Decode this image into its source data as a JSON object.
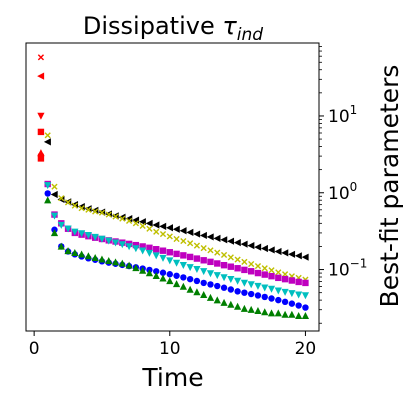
{
  "chart_data": {
    "type": "scatter",
    "title_main": "Dissipative ",
    "title_symbol": "τ",
    "title_subscript": "ind",
    "xlabel": "Time",
    "ylabel": "Best-fit parameters",
    "xlim": [
      -0.6,
      21.0
    ],
    "ylim_log10": [
      -1.8,
      1.95
    ],
    "yscale": "log",
    "yaxis_side": "right",
    "grid": false,
    "x_ticks": [
      0,
      10,
      20
    ],
    "x_tick_labels": [
      "0",
      "10",
      "20"
    ],
    "y_ticks": [
      0.1,
      1,
      10
    ],
    "y_tick_labels": [
      {
        "base": "10",
        "exp": "−1"
      },
      {
        "base": "10",
        "exp": "0"
      },
      {
        "base": "10",
        "exp": "1"
      }
    ],
    "x": [
      0.5,
      1,
      1.5,
      2,
      2.5,
      3,
      3.5,
      4,
      4.5,
      5,
      5.5,
      6,
      6.5,
      7,
      7.5,
      8,
      8.5,
      9,
      9.5,
      10,
      10.5,
      11,
      11.5,
      12,
      12.5,
      13,
      13.5,
      14,
      14.5,
      15,
      15.5,
      16,
      16.5,
      17,
      17.5,
      18,
      18.5,
      19,
      19.5,
      20
    ],
    "series": [
      {
        "color": "#000000",
        "marker": "triangle-left",
        "x_start_index": 1,
        "values": [
          4.6,
          0.95,
          0.82,
          0.76,
          0.7,
          0.66,
          0.62,
          0.59,
          0.56,
          0.53,
          0.5,
          0.48,
          0.46,
          0.44,
          0.42,
          0.4,
          0.38,
          0.365,
          0.35,
          0.335,
          0.32,
          0.305,
          0.29,
          0.278,
          0.266,
          0.255,
          0.244,
          0.234,
          0.224,
          0.214,
          0.205,
          0.196,
          0.188,
          0.18,
          0.172,
          0.165,
          0.158,
          0.151,
          0.145
        ]
      },
      {
        "color": "#bfbf00",
        "marker": "x",
        "x_start_index": 1,
        "values": [
          5.6,
          1.2,
          0.85,
          0.75,
          0.68,
          0.63,
          0.6,
          0.57,
          0.55,
          0.52,
          0.49,
          0.46,
          0.43,
          0.4,
          0.37,
          0.34,
          0.31,
          0.29,
          0.27,
          0.25,
          0.235,
          0.22,
          0.205,
          0.19,
          0.178,
          0.166,
          0.155,
          0.144,
          0.135,
          0.126,
          0.118,
          0.111,
          0.104,
          0.098,
          0.092,
          0.087,
          0.082,
          0.078,
          0.074
        ]
      },
      {
        "color": "#bf00bf",
        "marker": "square",
        "x_start_index": 1,
        "values": [
          1.3,
          0.52,
          0.4,
          0.34,
          0.3,
          0.285,
          0.272,
          0.26,
          0.25,
          0.24,
          0.232,
          0.224,
          0.216,
          0.208,
          0.2,
          0.192,
          0.184,
          0.176,
          0.168,
          0.16,
          0.153,
          0.146,
          0.139,
          0.132,
          0.126,
          0.12,
          0.114,
          0.109,
          0.104,
          0.099,
          0.095,
          0.09,
          0.086,
          0.082,
          0.078,
          0.075,
          0.072,
          0.069,
          0.067
        ]
      },
      {
        "color": "#00bfbf",
        "marker": "triangle-down",
        "x_start_index": 1,
        "values": [
          1.25,
          0.5,
          0.38,
          0.34,
          0.31,
          0.295,
          0.28,
          0.265,
          0.25,
          0.237,
          0.224,
          0.212,
          0.2,
          0.188,
          0.176,
          0.164,
          0.152,
          0.141,
          0.131,
          0.122,
          0.114,
          0.107,
          0.101,
          0.095,
          0.089,
          0.084,
          0.079,
          0.075,
          0.071,
          0.067,
          0.064,
          0.061,
          0.058,
          0.056,
          0.053,
          0.051,
          0.049,
          0.047,
          0.046
        ]
      },
      {
        "color": "#0000ff",
        "marker": "circle",
        "x_start_index": 1,
        "values": [
          0.98,
          0.33,
          0.2,
          0.172,
          0.158,
          0.148,
          0.14,
          0.134,
          0.128,
          0.123,
          0.119,
          0.115,
          0.111,
          0.107,
          0.103,
          0.099,
          0.095,
          0.091,
          0.087,
          0.083,
          0.079,
          0.075,
          0.071,
          0.067,
          0.064,
          0.061,
          0.058,
          0.055,
          0.052,
          0.05,
          0.048,
          0.046,
          0.044,
          0.042,
          0.04,
          0.038,
          0.036,
          0.034,
          0.032
        ]
      },
      {
        "color": "#007f00",
        "marker": "triangle-up",
        "x_start_index": 1,
        "values": [
          0.8,
          0.3,
          0.2,
          0.175,
          0.165,
          0.158,
          0.15,
          0.142,
          0.136,
          0.13,
          0.125,
          0.12,
          0.113,
          0.105,
          0.097,
          0.09,
          0.083,
          0.077,
          0.071,
          0.065,
          0.06,
          0.055,
          0.051,
          0.047,
          0.043,
          0.04,
          0.037,
          0.035,
          0.033,
          0.031,
          0.03,
          0.029,
          0.028,
          0.027,
          0.027,
          0.026,
          0.026,
          0.025,
          0.025
        ]
      }
    ],
    "early_points": [
      {
        "color": "#ff0000",
        "marker": "x",
        "x": 0.5,
        "y": 58
      },
      {
        "color": "#ff0000",
        "marker": "triangle-left",
        "x": 0.5,
        "y": 33
      },
      {
        "color": "#ff0000",
        "marker": "triangle-down",
        "x": 0.5,
        "y": 10
      },
      {
        "color": "#ff0000",
        "marker": "square",
        "x": 0.5,
        "y": 6.2
      },
      {
        "color": "#ff0000",
        "marker": "triangle-up",
        "x": 0.5,
        "y": 3.3
      },
      {
        "color": "#ff0000",
        "marker": "circle",
        "x": 0.5,
        "y": 3.05
      },
      {
        "color": "#ff0000",
        "marker": "square",
        "x": 0.5,
        "y": 2.8
      }
    ]
  }
}
